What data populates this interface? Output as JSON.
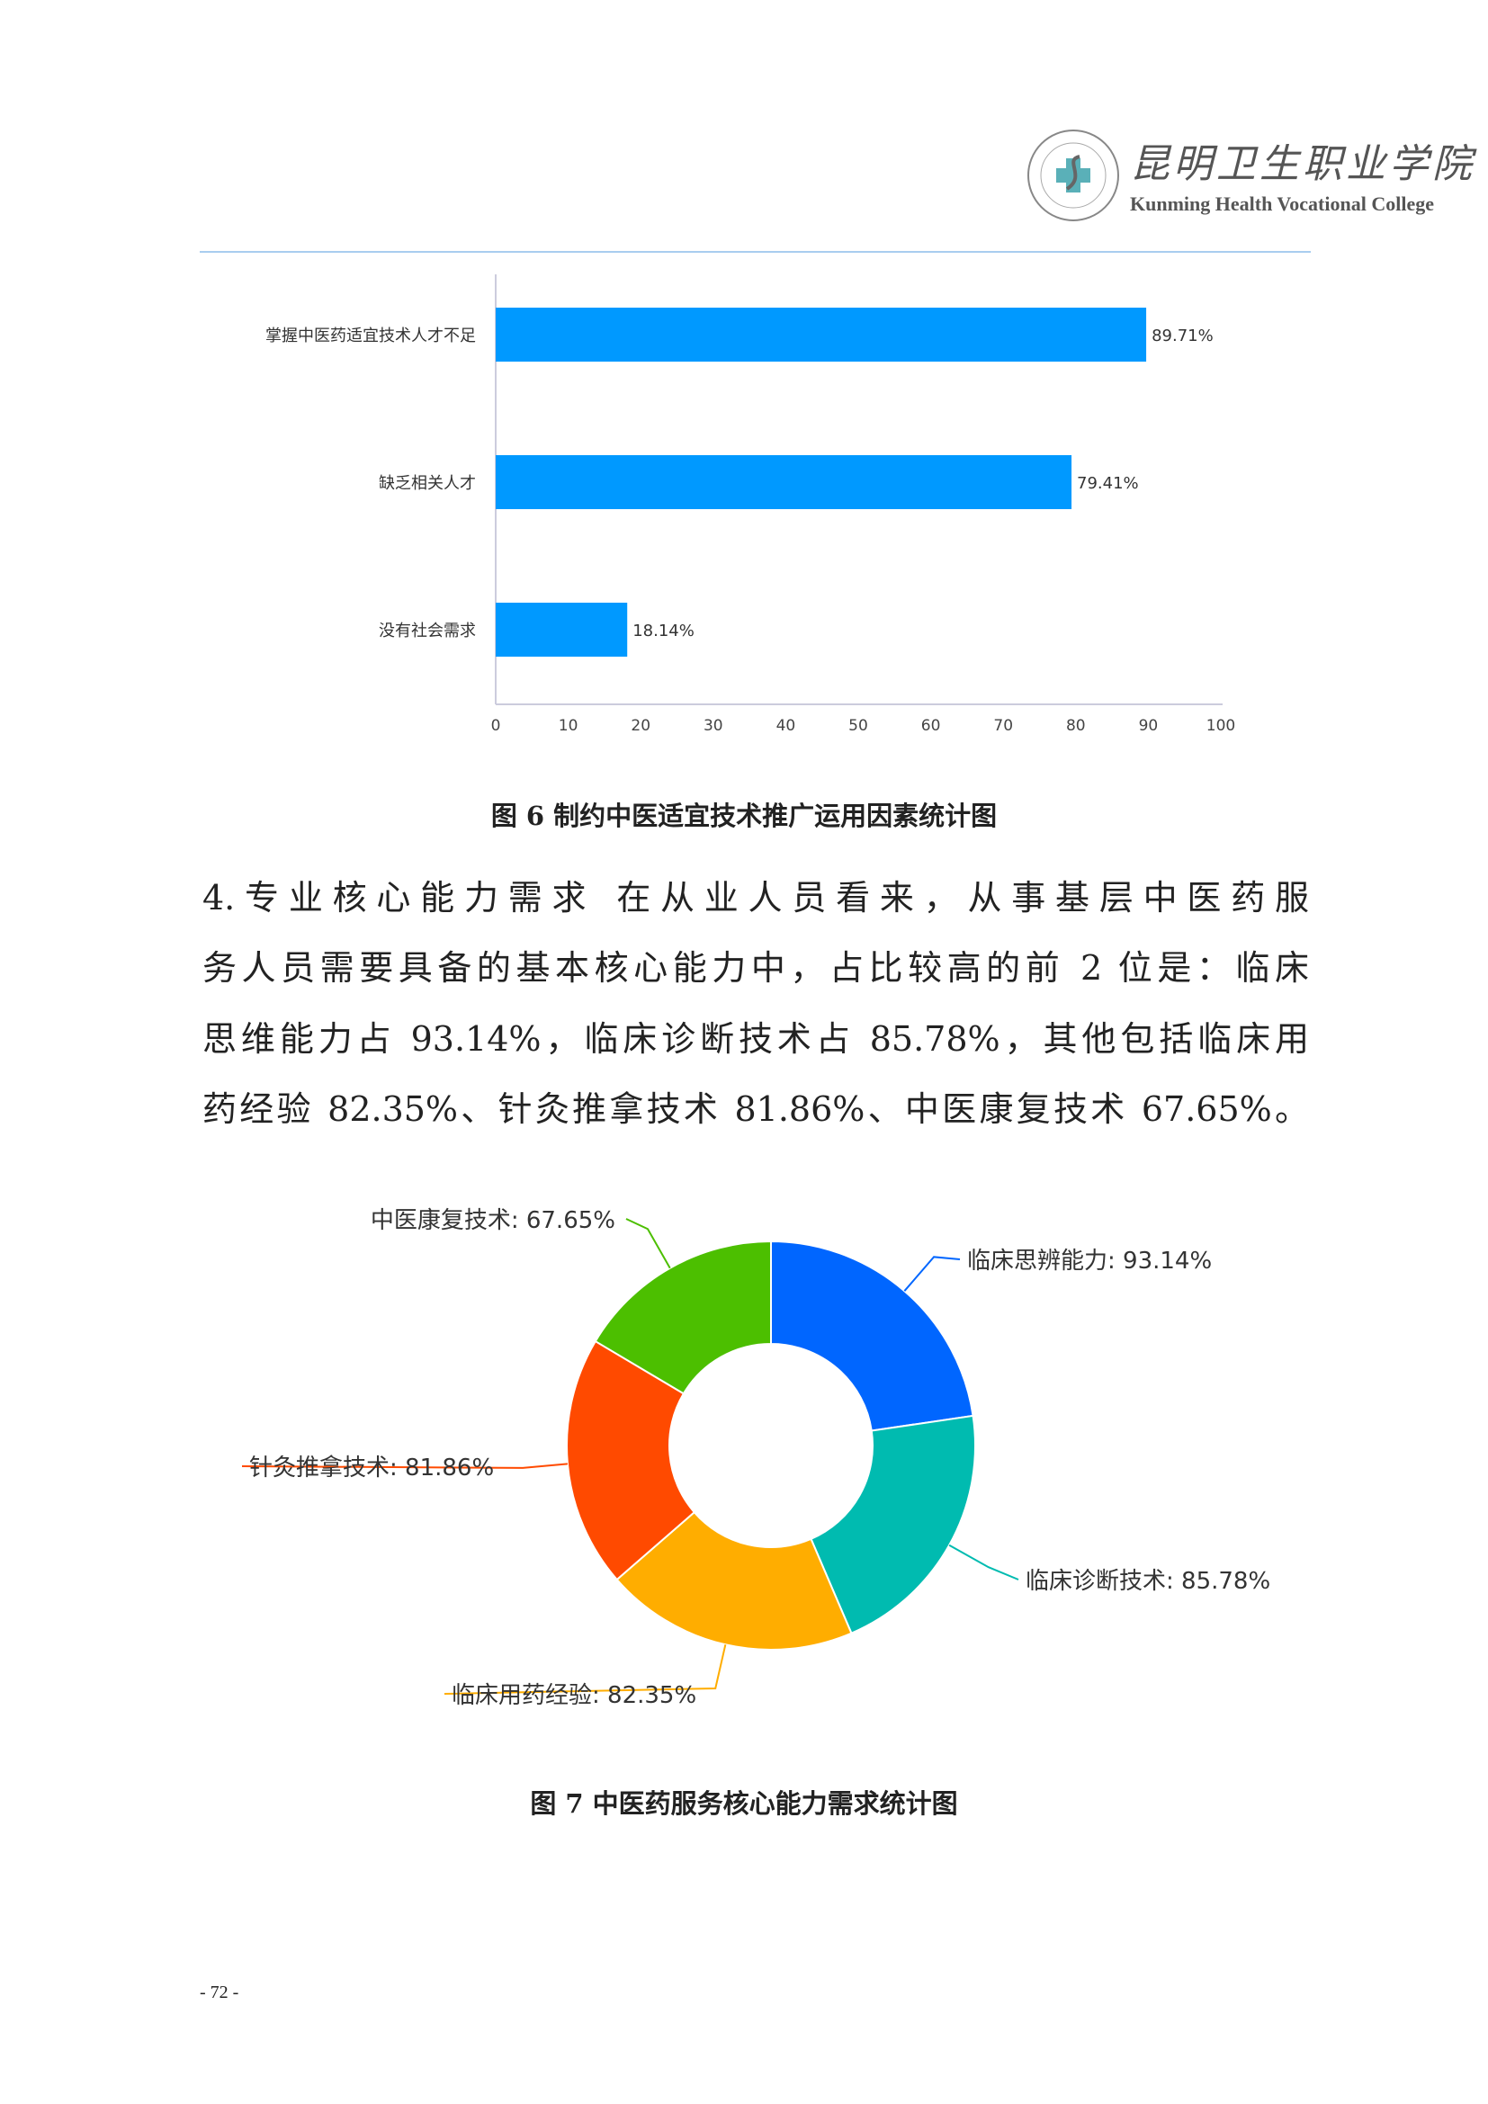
{
  "header": {
    "logo_cn": "昆明卫生职业学院",
    "logo_en": "Kunming Health Vocational College",
    "seal_text": "Kunming Health Vocational College 昆明卫生职业学院"
  },
  "figure6": {
    "caption": "图 6  制约中医适宜技术推广运用因素统计图"
  },
  "paragraph": {
    "lines": [
      "4.专业核心能力需求  在从业人员看来，从事基层中医药服",
      "务人员需要具备的基本核心能力中，占比较高的前 2 位是：临床",
      "思维能力占 93.14%，临床诊断技术占 85.78%，其他包括临床用",
      "药经验 82.35%、针灸推拿技术 81.86%、中医康复技术 67.65%。"
    ]
  },
  "figure7": {
    "caption": "图 7  中医药服务核心能力需求统计图"
  },
  "page_number": "- 72 -",
  "chart_data": [
    {
      "type": "bar",
      "orientation": "horizontal",
      "categories": [
        "掌握中医药适宜技术人才不足",
        "缺乏相关人才",
        "没有社会需求"
      ],
      "values": [
        89.71,
        79.41,
        18.14
      ],
      "data_labels": [
        "89.71%",
        "79.41%",
        "18.14%"
      ],
      "xlim": [
        0,
        100
      ],
      "xticks": [
        "0",
        "10",
        "20",
        "30",
        "40",
        "50",
        "60",
        "70",
        "80",
        "90",
        "100"
      ],
      "grid": false,
      "color": "#0099ff"
    },
    {
      "type": "pie",
      "donut": true,
      "categories": [
        "临床思辨能力",
        "临床诊断技术",
        "临床用药经验",
        "针灸推拿技术",
        "中医康复技术"
      ],
      "values": [
        93.14,
        85.78,
        82.35,
        81.86,
        67.65
      ],
      "labels": [
        "临床思辨能力: 93.14%",
        "临床诊断技术: 85.78%",
        "临床用药经验: 82.35%",
        "针灸推拿技术: 81.86%",
        "中医康复技术: 67.65%"
      ],
      "colors": [
        "#0066ff",
        "#00bbb0",
        "#ffad00",
        "#ff4a00",
        "#4cbf00"
      ]
    }
  ]
}
